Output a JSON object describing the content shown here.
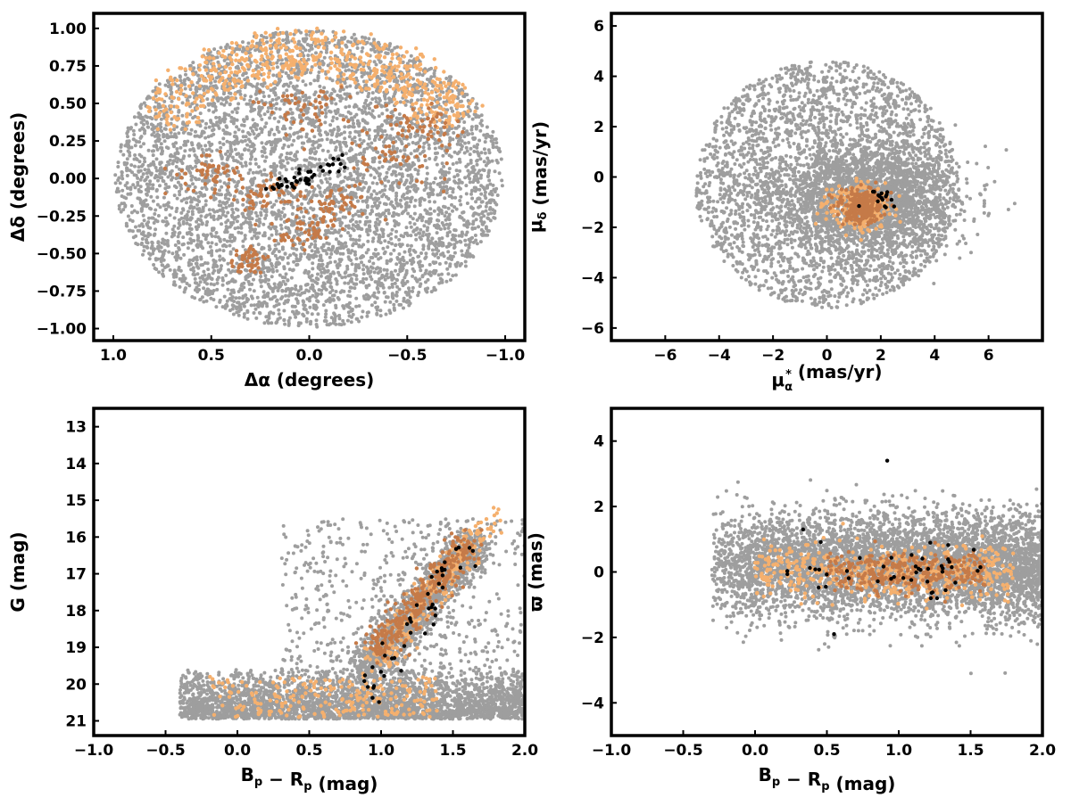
{
  "colors": {
    "field": "#9e9e9e",
    "light_orange": "#f5b06e",
    "dark_orange": "#c57a48",
    "core": "#000000",
    "frame": "#000000"
  },
  "chart_data": [
    {
      "type": "scatter",
      "id": "sky",
      "xlabel_main": "Δα",
      "xlabel_rest": " (degrees)",
      "ylabel_main": "Δδ",
      "ylabel_rest": " (degrees)",
      "xlim": [
        1.1,
        -1.1
      ],
      "ylim": [
        -1.08,
        1.1
      ],
      "x_inverted": true,
      "xticks": [
        1.0,
        0.5,
        0.0,
        -0.5,
        -1.0
      ],
      "xtick_labels": [
        "1.0",
        "0.5",
        "0.0",
        "−0.5",
        "−1.0"
      ],
      "yticks": [
        -1.0,
        -0.75,
        -0.5,
        -0.25,
        0.0,
        0.25,
        0.5,
        0.75,
        1.0
      ],
      "ytick_labels": [
        "−1.00",
        "−0.75",
        "−0.50",
        "−0.25",
        "0.00",
        "0.25",
        "0.50",
        "0.75",
        "1.00"
      ],
      "series": [
        {
          "class": "field",
          "color": "#9e9e9e",
          "distribution": "uniform disk of radius 1.0 deg centred on (0, 0)",
          "approx_points": 5200
        },
        {
          "class": "light_orange",
          "color": "#f5b06e",
          "distribution": "arc from (0.4, 0.95) to (-0.95, 0.05) along the north-west edge",
          "approx_points": 600
        },
        {
          "class": "dark_orange",
          "color": "#c57a48",
          "distribution": "clumps near (0.05, 0.45), (0.5, 0.05), (0.2, -0.1), (-0.1, -0.2), (0.0, -0.35), (0.3, -0.55)",
          "approx_points": 420
        },
        {
          "class": "core",
          "color": "#000000",
          "distribution": "compact group between (0.2, -0.1) and (-0.2, 0.12)",
          "approx_points": 45
        }
      ]
    },
    {
      "type": "scatter",
      "id": "proper-motion",
      "xlabel_main": "μ",
      "xlabel_sub": "α",
      "xlabel_sup": "*",
      "xlabel_rest": " (mas/yr)",
      "ylabel_main": "μ",
      "ylabel_sub": "δ",
      "ylabel_rest": " (mas/yr)",
      "xlim": [
        -8,
        8
      ],
      "ylim": [
        -6.5,
        6.5
      ],
      "xticks": [
        -6,
        -4,
        -2,
        0,
        2,
        4,
        6
      ],
      "xtick_labels": [
        "−6",
        "−4",
        "−2",
        "0",
        "2",
        "4",
        "6"
      ],
      "yticks": [
        -6,
        -4,
        -2,
        0,
        2,
        4,
        6
      ],
      "ytick_labels": [
        "−6",
        "−4",
        "−2",
        "0",
        "2",
        "4",
        "6"
      ],
      "series": [
        {
          "class": "field",
          "color": "#9e9e9e",
          "distribution": "disk of radius ~5 mas/yr centred on (0.2, -0.4), dense core near (1.5, -0.8)",
          "approx_points": 5200
        },
        {
          "class": "light_orange",
          "color": "#f5b06e",
          "distribution": "concentrated around (1.2, -1.2) with spread ~0.5",
          "approx_points": 300
        },
        {
          "class": "dark_orange",
          "color": "#c57a48",
          "distribution": "concentrated around (1.2, -1.2) with spread ~0.4",
          "approx_points": 260
        },
        {
          "class": "core",
          "color": "#000000",
          "distribution": "small group around (2.0, -0.8)",
          "approx_points": 16
        }
      ]
    },
    {
      "type": "scatter",
      "id": "cmd",
      "xlabel_main": "B",
      "xlabel_sub": "p",
      "xlabel_mid": " − R",
      "xlabel_sub2": "p",
      "xlabel_rest": " (mag)",
      "ylabel_main": "G",
      "ylabel_rest": " (mag)",
      "xlim": [
        -1.0,
        2.0
      ],
      "ylim": [
        21.4,
        12.5
      ],
      "y_inverted": true,
      "xticks": [
        -1.0,
        -0.5,
        0.0,
        0.5,
        1.0,
        1.5,
        2.0
      ],
      "xtick_labels": [
        "−1.0",
        "−0.5",
        "0.0",
        "0.5",
        "1.0",
        "1.5",
        "2.0"
      ],
      "yticks": [
        13,
        14,
        15,
        16,
        17,
        18,
        19,
        20,
        21
      ],
      "ytick_labels": [
        "13",
        "14",
        "15",
        "16",
        "17",
        "18",
        "19",
        "20",
        "21"
      ],
      "series": [
        {
          "class": "field",
          "color": "#9e9e9e",
          "distribution": "dense band at G 19.5–21 for colour -0.5 to 2.0, sequence from (0.9, 19.3) to (1.65, 16.0)",
          "approx_points": 5200
        },
        {
          "class": "light_orange",
          "color": "#f5b06e",
          "distribution": "sequence from (0.95, 19.5) to (1.75, 15.5) plus faint band at G ~20.5",
          "approx_points": 500
        },
        {
          "class": "dark_orange",
          "color": "#c57a48",
          "distribution": "sequence from (0.95, 19.2) to (1.6, 16.2)",
          "approx_points": 320
        },
        {
          "class": "core",
          "color": "#000000",
          "distribution": "scattered along sequence between (0.9, 20.5) and (1.6, 16.0)",
          "approx_points": 45
        }
      ]
    },
    {
      "type": "scatter",
      "id": "parallax",
      "xlabel_main": "B",
      "xlabel_sub": "p",
      "xlabel_mid": " − R",
      "xlabel_sub2": "p",
      "xlabel_rest": " (mag)",
      "ylabel_main": "ϖ",
      "ylabel_rest": " (mas)",
      "xlim": [
        -1.0,
        2.0
      ],
      "ylim": [
        -5.0,
        5.0
      ],
      "xticks": [
        -1.0,
        -0.5,
        0.0,
        0.5,
        1.0,
        1.5,
        2.0
      ],
      "xtick_labels": [
        "−1.0",
        "−0.5",
        "0.0",
        "0.5",
        "1.0",
        "1.5",
        "2.0"
      ],
      "yticks": [
        -4,
        -2,
        0,
        2,
        4
      ],
      "ytick_labels": [
        "−4",
        "−2",
        "0",
        "2",
        "4"
      ],
      "series": [
        {
          "class": "field",
          "color": "#9e9e9e",
          "distribution": "band around ϖ = 0 with spread ~0.8 mas for colour -0.3 to 2.0",
          "approx_points": 5200
        },
        {
          "class": "light_orange",
          "color": "#f5b06e",
          "distribution": "band around ϖ = 0 with spread ~0.4 mas, colour 0.0 to 1.8",
          "approx_points": 500
        },
        {
          "class": "dark_orange",
          "color": "#c57a48",
          "distribution": "band around ϖ = 0 with spread ~0.35 mas, colour 0.5 to 1.6",
          "approx_points": 320
        },
        {
          "class": "core",
          "color": "#000000",
          "distribution": "scattered around ϖ = 0 for colour 0.2 to 1.6, outliers at (0.92, 3.4) and (0.55, -1.9)",
          "approx_points": 45
        }
      ]
    }
  ]
}
